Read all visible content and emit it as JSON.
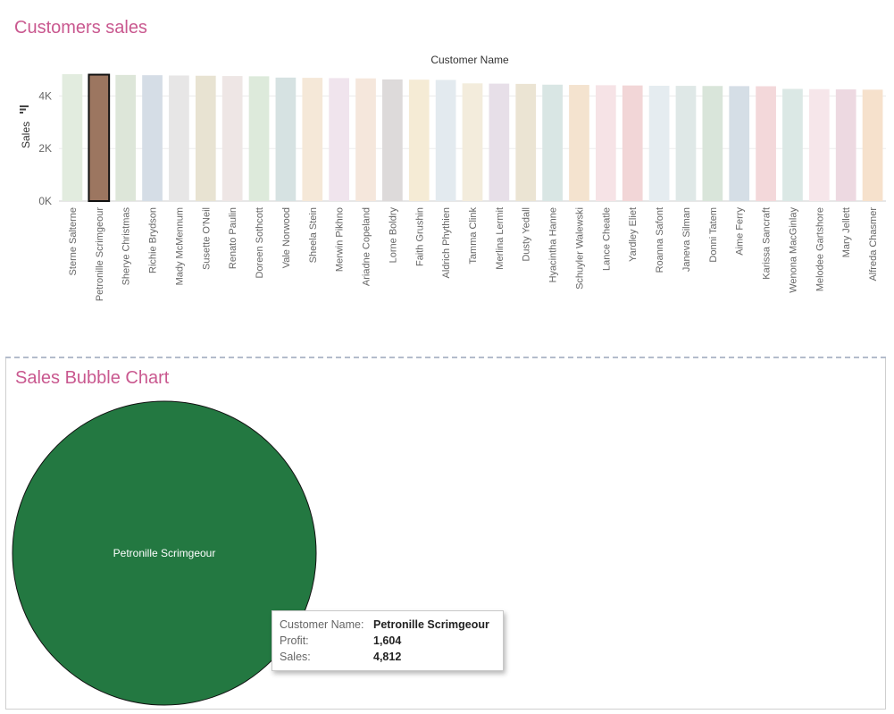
{
  "charts": {
    "top_title": "Customers sales",
    "bottom_title": "Sales Bubble Chart"
  },
  "chart_data": [
    {
      "type": "bar",
      "title": "Customers sales",
      "column_header": "Customer Name",
      "ylabel": "Sales",
      "ylim": [
        0,
        5000
      ],
      "yticks": [
        0,
        2000,
        4000
      ],
      "ytick_labels": [
        "0K",
        "2K",
        "4K"
      ],
      "grid": true,
      "selected_category": "Petronille Scrimgeour",
      "selected_color": "#9c7660",
      "categories": [
        "Sterne Salterne",
        "Petronille Scrimgeour",
        "Sherye Christmas",
        "Richie Brydson",
        "Mady McMennum",
        "Susette O'Neil",
        "Renato Paulin",
        "Doreen Sothcott",
        "Vale Norwood",
        "Sheela Stein",
        "Merwin Pikhno",
        "Ariadne Copeland",
        "Lorne Boldry",
        "Faith Grushin",
        "Aldrich Phythien",
        "Tamma Clink",
        "Merlina Lermit",
        "Dusty Yedall",
        "Hyacintha Hanne",
        "Schuyler Walewski",
        "Lance Cheatle",
        "Yardley Eliet",
        "Roanna Safont",
        "Janeva Silman",
        "Donni Tatem",
        "Aime Ferry",
        "Karissa Sancraft",
        "Wenona MacGinlay",
        "Melodee Gartshore",
        "Mary Jellett",
        "Alfreda Chasmer"
      ],
      "values": [
        4830,
        4812,
        4800,
        4790,
        4780,
        4770,
        4760,
        4750,
        4700,
        4690,
        4680,
        4670,
        4630,
        4620,
        4610,
        4480,
        4470,
        4460,
        4430,
        4420,
        4410,
        4400,
        4390,
        4385,
        4380,
        4375,
        4370,
        4270,
        4260,
        4250,
        4240
      ],
      "colors": [
        "#e2ecdf",
        "#9c7660",
        "#dde6d9",
        "#d5dde6",
        "#e7e6e6",
        "#e8e3d2",
        "#eee6e5",
        "#ddeadb",
        "#d6e2e2",
        "#f5e8d8",
        "#f0e4ed",
        "#f5e7dc",
        "#dddada",
        "#f5ebd5",
        "#e3eaef",
        "#f3ecdc",
        "#e7dfe8",
        "#ebe4d3",
        "#d9e6e4",
        "#f4e3cf",
        "#f6e3e6",
        "#f2d6d7",
        "#e5ecf0",
        "#dfe8e7",
        "#d9e5da",
        "#d5dee6",
        "#f3d8da",
        "#dbe8e5",
        "#f6e6ea",
        "#edd9e1",
        "#f6e1cc"
      ]
    },
    {
      "type": "bubble",
      "title": "Sales Bubble Chart",
      "bubbles": [
        {
          "name": "Petronille Scrimgeour",
          "sales": 4812,
          "profit": 1604,
          "color": "#237841"
        }
      ],
      "tooltip": {
        "rows": [
          {
            "key": "Customer Name:",
            "value": "Petronille Scrimgeour"
          },
          {
            "key": "Profit:",
            "value": "1,604"
          },
          {
            "key": "Sales:",
            "value": "4,812"
          }
        ]
      }
    }
  ]
}
